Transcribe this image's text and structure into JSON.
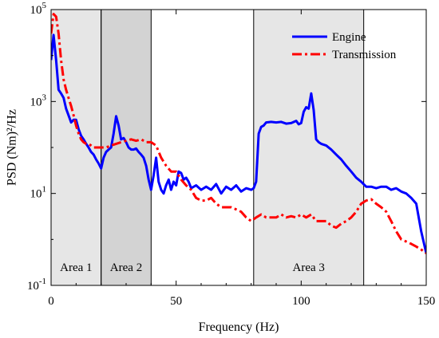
{
  "chart_data": {
    "type": "line",
    "xlabel": "Frequency (Hz)",
    "ylabel": "PSD (Nm)²/Hz",
    "xlim": [
      0,
      150
    ],
    "ylim": [
      0.1,
      100000
    ],
    "yscale": "log",
    "grid": false,
    "legend_position": "top-right",
    "x_ticks": [
      {
        "value": 0,
        "label": "0"
      },
      {
        "value": 50,
        "label": "50"
      },
      {
        "value": 100,
        "label": "100"
      },
      {
        "value": 150,
        "label": "150"
      }
    ],
    "y_ticks": [
      {
        "value": 0.1,
        "base": "10",
        "exp": "-1"
      },
      {
        "value": 10,
        "base": "10",
        "exp": "1"
      },
      {
        "value": 1000,
        "base": "10",
        "exp": "3"
      },
      {
        "value": 100000,
        "base": "10",
        "exp": "5"
      }
    ],
    "regions": [
      {
        "label": "Area 1",
        "x_start": 0,
        "x_end": 20,
        "color": "#e6e6e6"
      },
      {
        "label": "Area 2",
        "x_start": 20,
        "x_end": 40,
        "color": "#d3d3d3"
      },
      {
        "label": "Area 3",
        "x_start": 81,
        "x_end": 125,
        "color": "#e6e6e6"
      }
    ],
    "series": [
      {
        "name": "Engine",
        "color": "#0000ff",
        "style": "solid",
        "x": [
          0,
          1,
          2,
          3,
          4,
          5,
          6,
          7,
          8,
          9,
          10,
          11,
          12,
          13,
          14,
          15,
          16,
          17,
          18,
          19,
          20,
          21,
          22,
          23,
          24,
          25,
          26,
          27,
          28,
          29,
          30,
          31,
          32,
          33,
          34,
          35,
          36,
          37,
          38,
          39,
          40,
          41,
          42,
          43,
          44,
          45,
          46,
          47,
          48,
          49,
          50,
          51,
          52,
          53,
          54,
          55,
          56,
          58,
          60,
          62,
          64,
          66,
          68,
          70,
          72,
          74,
          76,
          78,
          80,
          81,
          82,
          83,
          84,
          85,
          86,
          88,
          90,
          92,
          94,
          96,
          98,
          99,
          100,
          101,
          102,
          103,
          104,
          105,
          106,
          107,
          108,
          110,
          112,
          114,
          116,
          118,
          120,
          122,
          124,
          126,
          128,
          130,
          132,
          134,
          136,
          138,
          140,
          142,
          144,
          146,
          148,
          150
        ],
        "y": [
          8000,
          28000,
          8000,
          1800,
          1500,
          1200,
          700,
          500,
          350,
          400,
          400,
          250,
          180,
          150,
          120,
          100,
          80,
          70,
          55,
          45,
          35,
          60,
          80,
          90,
          100,
          200,
          480,
          300,
          150,
          160,
          130,
          100,
          90,
          90,
          95,
          80,
          70,
          60,
          40,
          20,
          12,
          25,
          60,
          18,
          12,
          10,
          15,
          20,
          12,
          18,
          15,
          30,
          28,
          20,
          22,
          18,
          13,
          15,
          12,
          14,
          12,
          16,
          10,
          14,
          12,
          15,
          11,
          13,
          12,
          13,
          18,
          200,
          280,
          300,
          350,
          360,
          350,
          360,
          330,
          340,
          380,
          320,
          340,
          600,
          750,
          700,
          1500,
          650,
          150,
          130,
          120,
          110,
          90,
          70,
          55,
          40,
          30,
          22,
          18,
          14,
          14,
          13,
          14,
          14,
          12,
          13,
          11,
          10,
          8,
          6,
          1.5,
          0.5
        ]
      },
      {
        "name": "Transmission",
        "color": "#ff0000",
        "style": "dashdot",
        "x": [
          0,
          1,
          2,
          3,
          4,
          5,
          6,
          7,
          8,
          9,
          10,
          11,
          12,
          13,
          14,
          15,
          16,
          17,
          18,
          19,
          20,
          22,
          24,
          26,
          28,
          30,
          32,
          34,
          36,
          38,
          40,
          42,
          44,
          46,
          48,
          50,
          52,
          54,
          56,
          58,
          60,
          62,
          64,
          66,
          68,
          70,
          72,
          74,
          76,
          78,
          80,
          82,
          84,
          86,
          88,
          90,
          92,
          94,
          96,
          98,
          100,
          102,
          104,
          106,
          108,
          110,
          112,
          114,
          116,
          118,
          120,
          122,
          124,
          126,
          128,
          130,
          132,
          134,
          136,
          138,
          140,
          142,
          144,
          146,
          148,
          150
        ],
        "y": [
          30000,
          80000,
          70000,
          30000,
          8000,
          3000,
          1800,
          1200,
          800,
          500,
          300,
          200,
          150,
          130,
          120,
          120,
          110,
          100,
          100,
          100,
          100,
          100,
          110,
          120,
          130,
          140,
          150,
          140,
          150,
          130,
          130,
          110,
          60,
          40,
          30,
          30,
          20,
          15,
          12,
          8,
          7,
          7,
          8,
          6,
          5,
          5,
          5,
          4.5,
          4,
          3,
          2.5,
          3,
          3.5,
          3,
          3,
          3,
          3.5,
          3,
          3.2,
          3,
          3.5,
          3,
          3.5,
          2.5,
          2.5,
          2.5,
          2,
          1.8,
          2.2,
          2.5,
          3,
          4,
          6,
          7,
          7.5,
          6,
          5,
          4,
          2.5,
          1.5,
          1,
          0.9,
          0.8,
          0.7,
          0.6,
          0.5
        ]
      }
    ]
  }
}
